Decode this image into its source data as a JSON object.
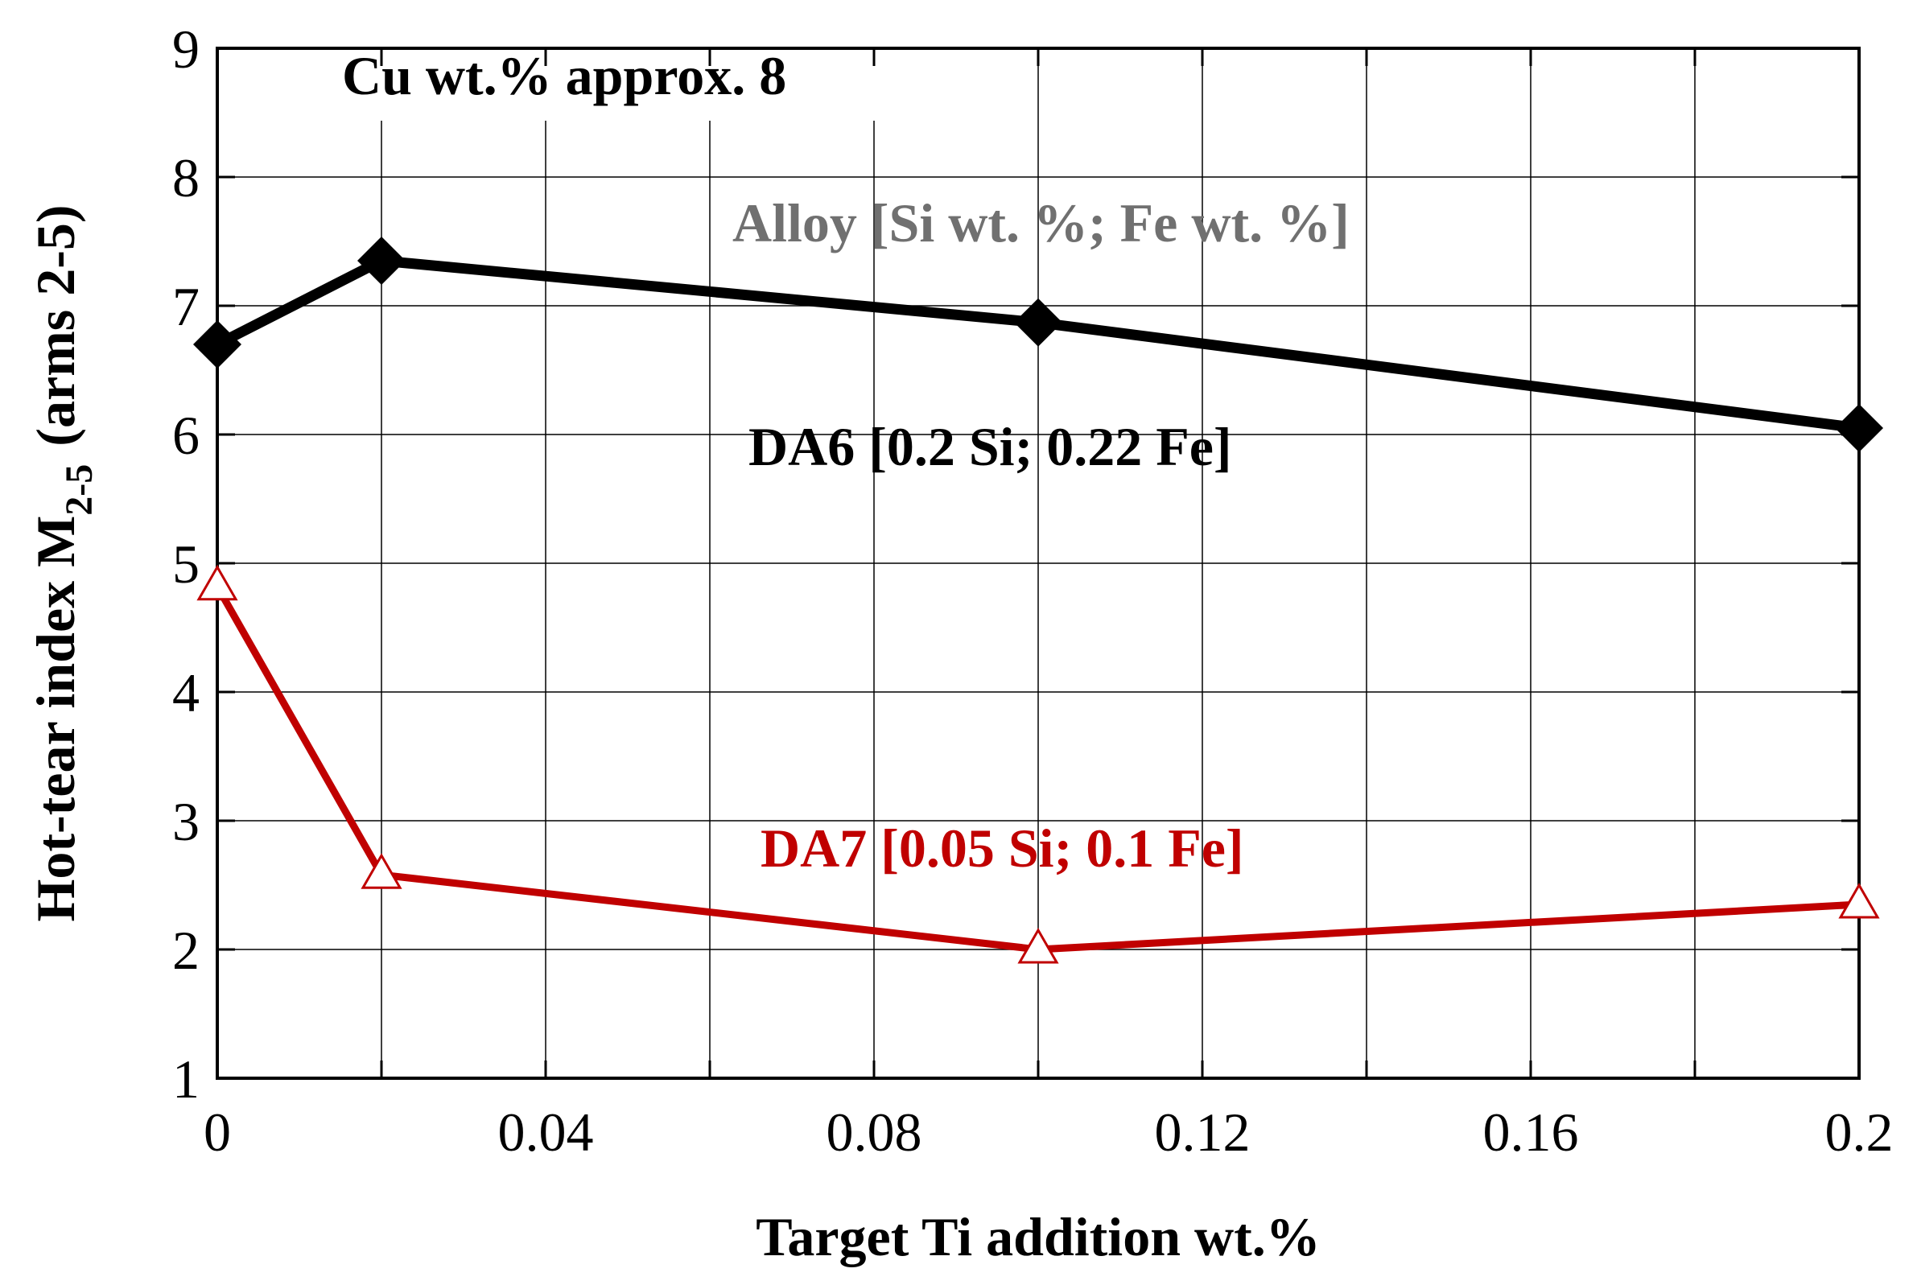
{
  "chart_data": {
    "type": "line",
    "title": "",
    "xlabel": "Target Ti addition wt.%",
    "ylabel_main": "Hot-tear index M",
    "ylabel_sub": "2-5",
    "ylabel_tail": "(arms 2-5)",
    "xlim": [
      0,
      0.2
    ],
    "ylim": [
      1,
      9
    ],
    "x_ticks": [
      0,
      0.04,
      0.08,
      0.12,
      0.16,
      0.2
    ],
    "x_tick_labels": [
      "0",
      "0.04",
      "0.08",
      "0.12",
      "0.16",
      "0.2"
    ],
    "x_grid": [
      0,
      0.02,
      0.04,
      0.06,
      0.08,
      0.1,
      0.12,
      0.14,
      0.16,
      0.18,
      0.2
    ],
    "y_ticks": [
      1,
      2,
      3,
      4,
      5,
      6,
      7,
      8,
      9
    ],
    "y_tick_labels": [
      "1",
      "2",
      "3",
      "4",
      "5",
      "6",
      "7",
      "8",
      "9"
    ],
    "grid": true,
    "annotations": {
      "cu_note": "Cu wt.% approx. 8",
      "legend_title": "Alloy [Si wt. %; Fe wt. %]"
    },
    "series": [
      {
        "name": "DA6 [0.2 Si; 0.22 Fe]",
        "color": "#000000",
        "marker": "diamond",
        "x": [
          0,
          0.02,
          0.1,
          0.2
        ],
        "y": [
          6.7,
          7.35,
          6.87,
          6.05
        ]
      },
      {
        "name": "DA7 [0.05 Si; 0.1 Fe]",
        "color": "#c00000",
        "marker": "triangle-open",
        "x": [
          0,
          0.02,
          0.1,
          0.2
        ],
        "y": [
          4.82,
          2.58,
          2.0,
          2.35
        ]
      }
    ],
    "colors": {
      "legend_title": "#707070",
      "grid": "#000000"
    }
  }
}
